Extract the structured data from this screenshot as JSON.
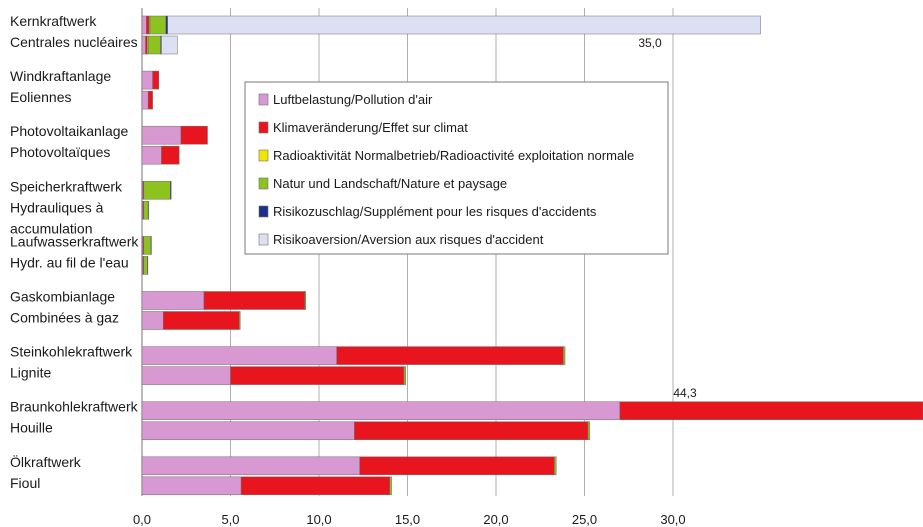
{
  "chart_data": {
    "type": "bar",
    "orientation": "horizontal",
    "stacked": true,
    "xlim": [
      0,
      44.3
    ],
    "x_ticks": [
      "0,0",
      "5,0",
      "10,0",
      "15,0",
      "20,0",
      "25,0",
      "30,0"
    ],
    "x_tick_values": [
      0,
      5,
      10,
      15,
      20,
      25,
      30
    ],
    "grid": true,
    "legend_position": "center",
    "categories": [
      {
        "label1": "Kernkraftwerk",
        "label2": "Centrales nucléaires"
      },
      {
        "label1": "Windkraftanlage",
        "label2": "Eoliennes"
      },
      {
        "label1": "Photovoltaikanlage",
        "label2": "Photovoltaïques"
      },
      {
        "label1": "Speicherkraftwerk",
        "label2": "Hydrauliques à",
        "label3": "accumulation"
      },
      {
        "label1": "Laufwasserkraftwerk",
        "label2": "Hydr. au fil de l'eau"
      },
      {
        "label1": "Gaskombianlage",
        "label2": "Combinées à gaz"
      },
      {
        "label1": "Steinkohlekraftwerk",
        "label2": "Lignite"
      },
      {
        "label1": "Braunkohlekraftwerk",
        "label2": "Houille"
      },
      {
        "label1": "Ölkraftwerk",
        "label2": "Fioul"
      }
    ],
    "series": [
      {
        "name": "Luftbelastung/Pollution d'air",
        "color": "#d898d2"
      },
      {
        "name": "Klimaveränderung/Effet sur climat",
        "color": "#e8151e"
      },
      {
        "name": "Radioaktivität Normalbetrieb/Radioactivité exploitation normale",
        "color": "#f2e600"
      },
      {
        "name": "Natur und Landschaft/Nature et paysage",
        "color": "#8cc31e"
      },
      {
        "name": "Risikozuschlag/Supplément pour les risques d'accidents",
        "color": "#1c2f8c"
      },
      {
        "name": "Risikoaversion/Aversion aux risques d'accident",
        "color": "#dde0f2"
      }
    ],
    "bars": [
      {
        "category": 0,
        "row": 0,
        "values": [
          0.25,
          0.15,
          0.05,
          0.9,
          0.1,
          33.5
        ]
      },
      {
        "category": 0,
        "row": 1,
        "values": [
          0.2,
          0.1,
          0.05,
          0.7,
          0.05,
          0.9
        ]
      },
      {
        "category": 1,
        "row": 0,
        "values": [
          0.6,
          0.35,
          0,
          0,
          0,
          0
        ]
      },
      {
        "category": 1,
        "row": 1,
        "values": [
          0.35,
          0.25,
          0,
          0,
          0,
          0
        ]
      },
      {
        "category": 2,
        "row": 0,
        "values": [
          2.2,
          1.5,
          0,
          0,
          0,
          0
        ]
      },
      {
        "category": 2,
        "row": 1,
        "values": [
          1.1,
          1.0,
          0,
          0,
          0,
          0
        ]
      },
      {
        "category": 3,
        "row": 0,
        "values": [
          0.05,
          0.05,
          0,
          1.5,
          0.05,
          0
        ]
      },
      {
        "category": 3,
        "row": 1,
        "values": [
          0.05,
          0.05,
          0,
          0.25,
          0.02,
          0
        ]
      },
      {
        "category": 4,
        "row": 0,
        "values": [
          0.05,
          0.05,
          0,
          0.4,
          0.02,
          0
        ]
      },
      {
        "category": 4,
        "row": 1,
        "values": [
          0.05,
          0.05,
          0,
          0.2,
          0.01,
          0
        ]
      },
      {
        "category": 5,
        "row": 0,
        "values": [
          3.5,
          5.7,
          0,
          0.05,
          0,
          0
        ]
      },
      {
        "category": 5,
        "row": 1,
        "values": [
          1.2,
          4.3,
          0,
          0.05,
          0,
          0
        ]
      },
      {
        "category": 6,
        "row": 0,
        "values": [
          11.0,
          12.8,
          0,
          0.1,
          0,
          0
        ]
      },
      {
        "category": 6,
        "row": 1,
        "values": [
          5.0,
          9.8,
          0,
          0.1,
          0,
          0
        ]
      },
      {
        "category": 7,
        "row": 0,
        "values": [
          27.0,
          17.2,
          0,
          0.1,
          0,
          0
        ]
      },
      {
        "category": 7,
        "row": 1,
        "values": [
          12.0,
          13.2,
          0,
          0.1,
          0,
          0
        ]
      },
      {
        "category": 8,
        "row": 0,
        "values": [
          12.3,
          11.0,
          0,
          0.1,
          0,
          0
        ]
      },
      {
        "category": 8,
        "row": 1,
        "values": [
          5.6,
          8.4,
          0,
          0.1,
          0,
          0
        ]
      }
    ],
    "annotations": [
      {
        "text": "35,0",
        "category": 0,
        "row": 1
      },
      {
        "text": "44,3",
        "category": 7,
        "row": 0
      }
    ]
  }
}
